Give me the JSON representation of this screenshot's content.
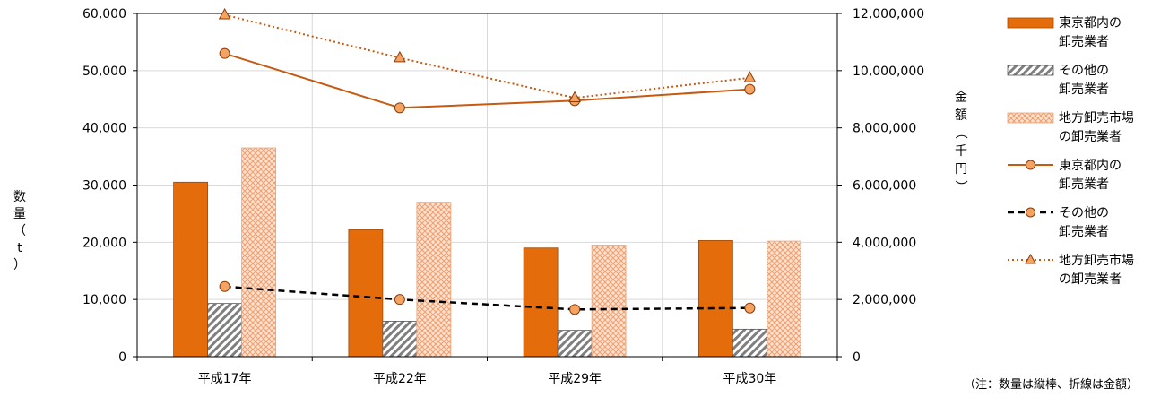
{
  "chart_data": {
    "type": "bar",
    "categories": [
      "平成17年",
      "平成22年",
      "平成29年",
      "平成30年"
    ],
    "y_left": {
      "label_chars": [
        "数",
        "量",
        "（",
        "t",
        "）"
      ],
      "ticks": [
        "0",
        "10,000",
        "20,000",
        "30,000",
        "40,000",
        "50,000",
        "60,000"
      ],
      "range": [
        0,
        60000
      ]
    },
    "y_right": {
      "label_chars": [
        "金",
        "額",
        "（",
        "千",
        "円",
        "）"
      ],
      "ticks": [
        "0",
        "2,000,000",
        "4,000,000",
        "6,000,000",
        "8,000,000",
        "10,000,000",
        "12,000,000"
      ],
      "range": [
        0,
        12000000
      ]
    },
    "bar_series": [
      {
        "name_lines": [
          "東京都内の",
          "卸売業者"
        ],
        "values": [
          30500,
          22200,
          19000,
          20300
        ],
        "style": "solid",
        "color": "#E46C0A"
      },
      {
        "name_lines": [
          "その他の",
          "卸売業者"
        ],
        "values": [
          9300,
          6200,
          4600,
          4800
        ],
        "style": "hatched",
        "color": "#7F7F7F"
      },
      {
        "name_lines": [
          "地方卸売市場",
          "の卸売業者"
        ],
        "values": [
          36500,
          27000,
          19500,
          20200
        ],
        "style": "crosshatch",
        "color": "#F4B183"
      }
    ],
    "line_series": [
      {
        "name_lines": [
          "東京都内の",
          "卸売業者"
        ],
        "values": [
          10600000,
          8700000,
          8950000,
          9350000
        ],
        "style": "solid",
        "marker": "circle",
        "color": "#C55A11"
      },
      {
        "name_lines": [
          "その他の",
          "卸売業者"
        ],
        "values": [
          2450000,
          2000000,
          1650000,
          1700000
        ],
        "style": "dashed",
        "marker": "circle",
        "color": "#000000"
      },
      {
        "name_lines": [
          "地方卸売市場",
          "の卸売業者"
        ],
        "values": [
          11950000,
          10450000,
          9050000,
          9750000
        ],
        "style": "dotted",
        "marker": "triangle",
        "color": "#C55A11"
      }
    ],
    "grid": true,
    "legend_position": "right",
    "note": "（注：数量は縦棒、折線は金額）"
  },
  "colors": {
    "bar_orange": "#E46C0A",
    "line_orange": "#C55A11",
    "marker_fill": "#F4A460",
    "grid": "#D9D9D9"
  }
}
